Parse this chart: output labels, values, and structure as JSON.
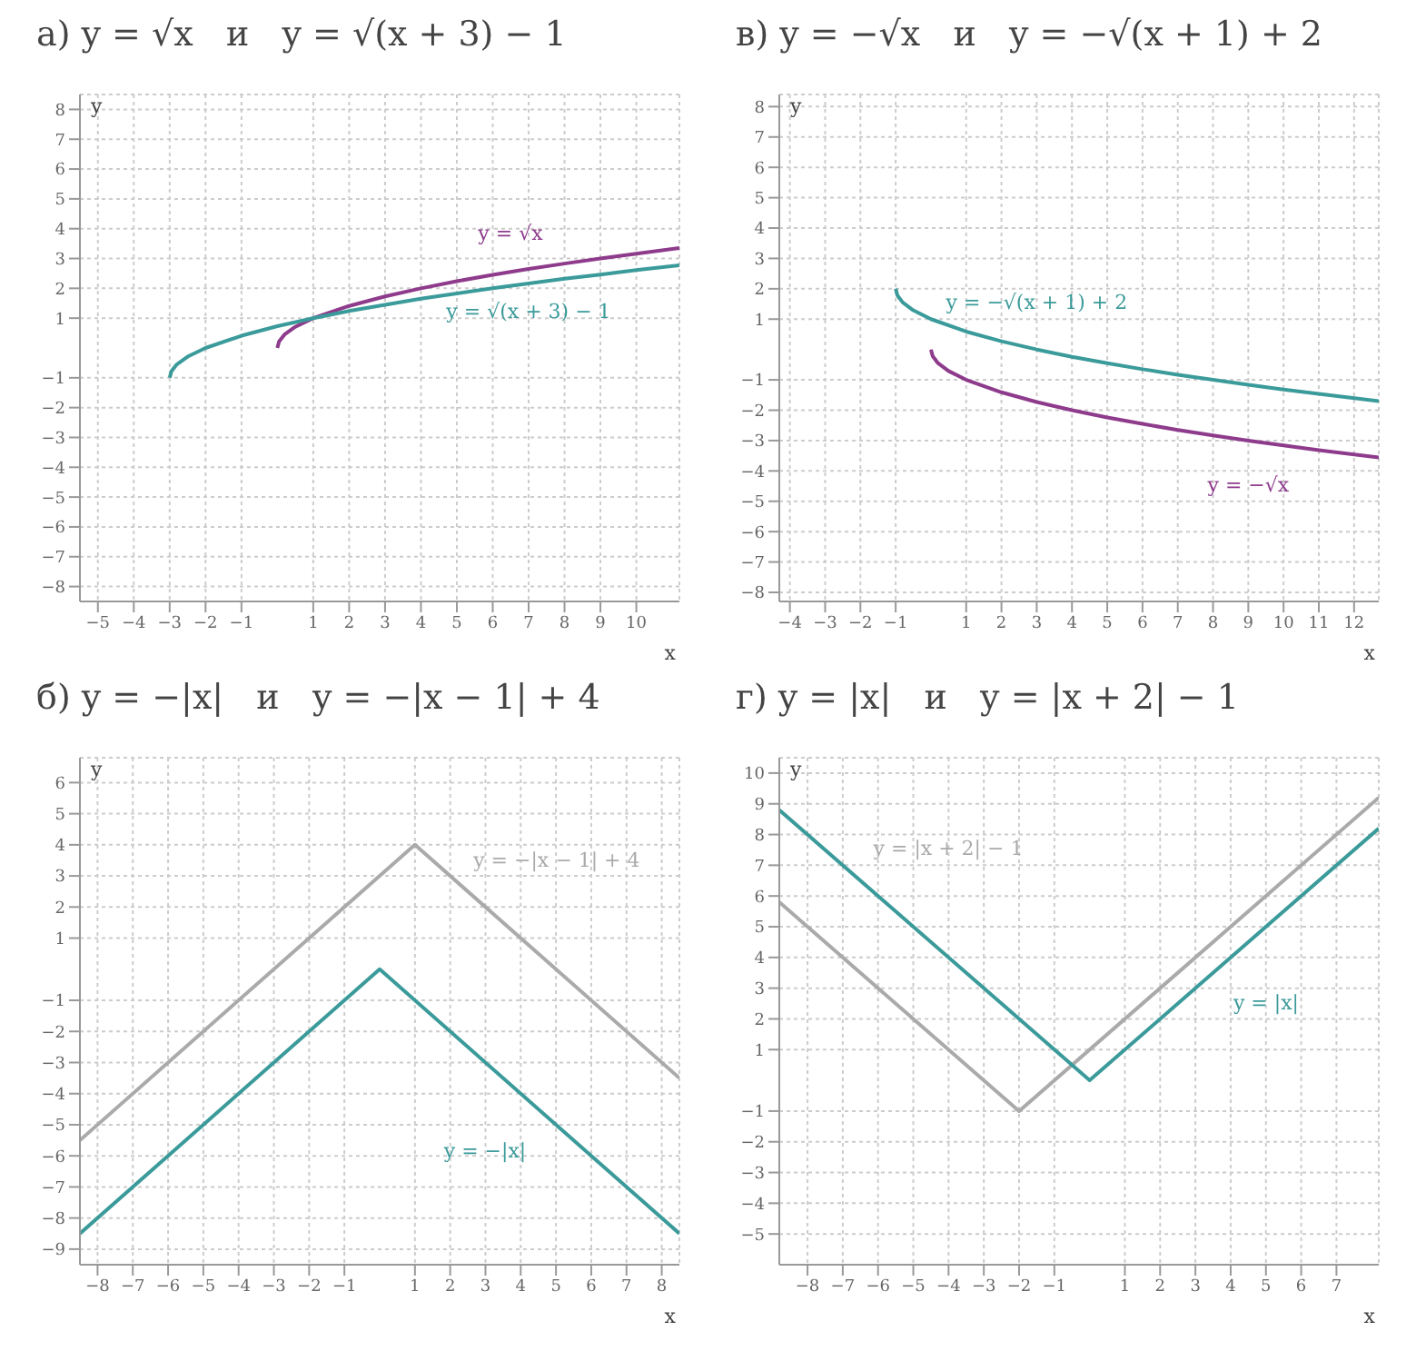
{
  "chart_data": [
    {
      "type": "line",
      "title": "а) y = √x   и   y = √(x + 3) − 1",
      "xlabel": "x",
      "ylabel": "y",
      "xlim": [
        -5.5,
        11.2
      ],
      "ylim": [
        -8.5,
        8.5
      ],
      "grid": true,
      "xticks": [
        -5,
        -4,
        -3,
        -2,
        -1,
        1,
        2,
        3,
        4,
        5,
        6,
        7,
        8,
        9,
        10
      ],
      "yticks": [
        -8,
        -7,
        -6,
        -5,
        -4,
        -3,
        -2,
        -1,
        1,
        2,
        3,
        4,
        5,
        6,
        7,
        8
      ],
      "series": [
        {
          "name": "y = √x",
          "color": "#8e3b8c",
          "x": [
            0,
            0.05,
            0.2,
            0.5,
            1,
            2,
            3,
            4,
            5,
            6,
            7,
            8,
            9,
            10,
            11.2
          ],
          "values": [
            0,
            0.22,
            0.45,
            0.71,
            1,
            1.41,
            1.73,
            2,
            2.24,
            2.45,
            2.65,
            2.83,
            3,
            3.16,
            3.35
          ]
        },
        {
          "name": "y = √(x + 3) − 1",
          "color": "#3b9a9a",
          "x": [
            -3,
            -2.95,
            -2.8,
            -2.5,
            -2,
            -1,
            0,
            1,
            2,
            3,
            4,
            5,
            6,
            7,
            8,
            9,
            10,
            11.2
          ],
          "values": [
            -1,
            -0.78,
            -0.55,
            -0.29,
            0,
            0.41,
            0.73,
            1,
            1.24,
            1.45,
            1.65,
            1.83,
            2,
            2.16,
            2.32,
            2.46,
            2.61,
            2.77
          ]
        }
      ]
    },
    {
      "type": "line",
      "title": "в) y = −√x   и   y = −√(x + 1) + 2",
      "xlabel": "x",
      "ylabel": "y",
      "xlim": [
        -4.3,
        12.7
      ],
      "ylim": [
        -8.3,
        8.4
      ],
      "grid": true,
      "xticks": [
        -4,
        -3,
        -2,
        -1,
        1,
        2,
        3,
        4,
        5,
        6,
        7,
        8,
        9,
        10,
        11,
        12
      ],
      "yticks": [
        -8,
        -7,
        -6,
        -5,
        -4,
        -3,
        -2,
        -1,
        1,
        2,
        3,
        4,
        5,
        6,
        7,
        8
      ],
      "series": [
        {
          "name": "y = −√x",
          "color": "#8e3b8c",
          "x": [
            0,
            0.05,
            0.2,
            0.5,
            1,
            2,
            3,
            4,
            5,
            6,
            7,
            8,
            9,
            10,
            11,
            12.7
          ],
          "values": [
            0,
            -0.22,
            -0.45,
            -0.71,
            -1,
            -1.41,
            -1.73,
            -2,
            -2.24,
            -2.45,
            -2.65,
            -2.83,
            -3,
            -3.16,
            -3.32,
            -3.56
          ]
        },
        {
          "name": "y = −√(x + 1) + 2",
          "color": "#3b9a9a",
          "x": [
            -1,
            -0.95,
            -0.8,
            -0.5,
            0,
            1,
            2,
            3,
            4,
            5,
            6,
            7,
            8,
            9,
            10,
            11,
            12.7
          ],
          "values": [
            2,
            1.78,
            1.55,
            1.29,
            1,
            0.59,
            0.27,
            0,
            -0.24,
            -0.45,
            -0.65,
            -0.83,
            -1,
            -1.16,
            -1.32,
            -1.46,
            -1.7
          ]
        }
      ]
    },
    {
      "type": "line",
      "title": "б) y = −|x|   и   y = −|x − 1| + 4",
      "xlabel": "x",
      "ylabel": "y",
      "xlim": [
        -8.5,
        8.5
      ],
      "ylim": [
        -9.5,
        6.8
      ],
      "grid": true,
      "xticks": [
        -8,
        -7,
        -6,
        -5,
        -4,
        -3,
        -2,
        -1,
        1,
        2,
        3,
        4,
        5,
        6,
        7,
        8
      ],
      "yticks": [
        -9,
        -8,
        -7,
        -6,
        -5,
        -4,
        -3,
        -2,
        -1,
        1,
        2,
        3,
        4,
        5,
        6
      ],
      "series": [
        {
          "name": "y = −|x − 1| + 4",
          "color": "#aaaaaa",
          "x": [
            -8.5,
            1,
            8.5
          ],
          "values": [
            -5.5,
            4,
            -3.5
          ]
        },
        {
          "name": "y = −|x|",
          "color": "#3b9a9a",
          "x": [
            -8.5,
            0,
            8.5
          ],
          "values": [
            -8.5,
            0,
            -8.5
          ]
        }
      ]
    },
    {
      "type": "line",
      "title": "г) y = |x|   и   y = |x + 2| − 1",
      "xlabel": "x",
      "ylabel": "y",
      "xlim": [
        -8.8,
        8.2
      ],
      "ylim": [
        -6,
        10.5
      ],
      "grid": true,
      "xticks": [
        -8,
        -7,
        -6,
        -5,
        -4,
        -3,
        -2,
        -1,
        1,
        2,
        3,
        4,
        5,
        6,
        7
      ],
      "yticks": [
        -5,
        -4,
        -3,
        -2,
        -1,
        1,
        2,
        3,
        4,
        5,
        6,
        7,
        8,
        9,
        10
      ],
      "series": [
        {
          "name": "y = |x + 2| − 1",
          "color": "#aaaaaa",
          "x": [
            -8.8,
            -2,
            8.2
          ],
          "values": [
            5.8,
            -1,
            9.2
          ]
        },
        {
          "name": "y = |x|",
          "color": "#3b9a9a",
          "x": [
            -8.8,
            0,
            8.2
          ],
          "values": [
            8.8,
            0,
            8.2
          ]
        }
      ]
    }
  ]
}
